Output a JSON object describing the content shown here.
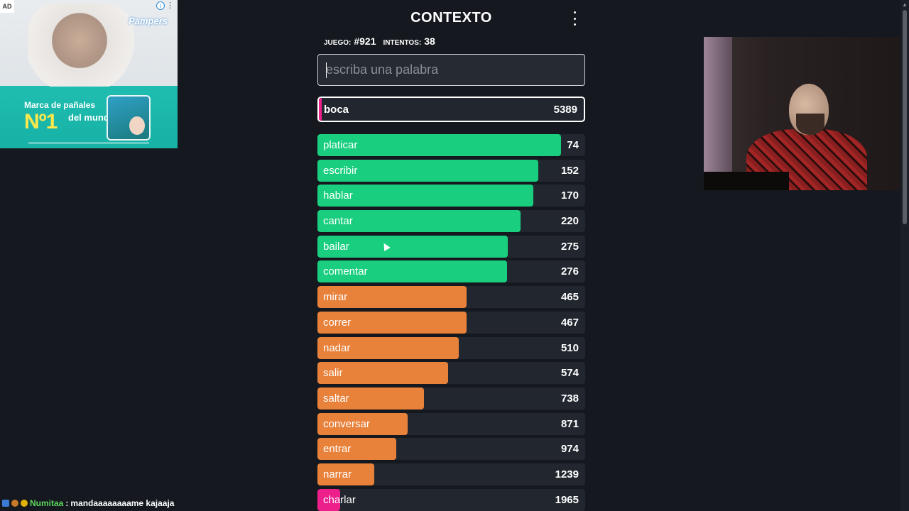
{
  "ad": {
    "label": "AD",
    "info": "i",
    "menu": "⋮",
    "brand": "Pampers",
    "tagline": "Marca de pañales",
    "no1": "Nº1",
    "rest": "del mundo"
  },
  "header": {
    "title": "CONTEXTO",
    "menu_icon": "kebab-menu-icon"
  },
  "meta": {
    "game_label": "JUEGO:",
    "game_value": "#921",
    "attempts_label": "INTENTOS:",
    "attempts_value": "38"
  },
  "search": {
    "placeholder": "escriba una palabra",
    "value": ""
  },
  "last_guess": {
    "word": "boca",
    "rank": "5389",
    "color": "#ec1f8b"
  },
  "colors": {
    "green": "#19cf7f",
    "orange": "#e8813a",
    "pink": "#ec1f8b",
    "row_bg": "#22272f"
  },
  "guesses": [
    {
      "word": "platicar",
      "rank": "74",
      "fill": 0.91,
      "color": "green"
    },
    {
      "word": "escribir",
      "rank": "152",
      "fill": 0.825,
      "color": "green"
    },
    {
      "word": "hablar",
      "rank": "170",
      "fill": 0.807,
      "color": "green"
    },
    {
      "word": "cantar",
      "rank": "220",
      "fill": 0.759,
      "color": "green"
    },
    {
      "word": "bailar",
      "rank": "275",
      "fill": 0.71,
      "color": "green"
    },
    {
      "word": "comentar",
      "rank": "276",
      "fill": 0.708,
      "color": "green"
    },
    {
      "word": "mirar",
      "rank": "465",
      "fill": 0.558,
      "color": "orange"
    },
    {
      "word": "correr",
      "rank": "467",
      "fill": 0.556,
      "color": "orange"
    },
    {
      "word": "nadar",
      "rank": "510",
      "fill": 0.528,
      "color": "orange"
    },
    {
      "word": "salir",
      "rank": "574",
      "fill": 0.488,
      "color": "orange"
    },
    {
      "word": "saltar",
      "rank": "738",
      "fill": 0.397,
      "color": "orange"
    },
    {
      "word": "conversar",
      "rank": "871",
      "fill": 0.337,
      "color": "orange"
    },
    {
      "word": "entrar",
      "rank": "974",
      "fill": 0.295,
      "color": "orange"
    },
    {
      "word": "narrar",
      "rank": "1239",
      "fill": 0.212,
      "color": "orange"
    },
    {
      "word": "charlar",
      "rank": "1965",
      "fill": 0.085,
      "color": "pink"
    }
  ],
  "chat": {
    "user": "Numitaa",
    "separator": ":",
    "message": "mandaaaaaaaame kajaaja"
  }
}
